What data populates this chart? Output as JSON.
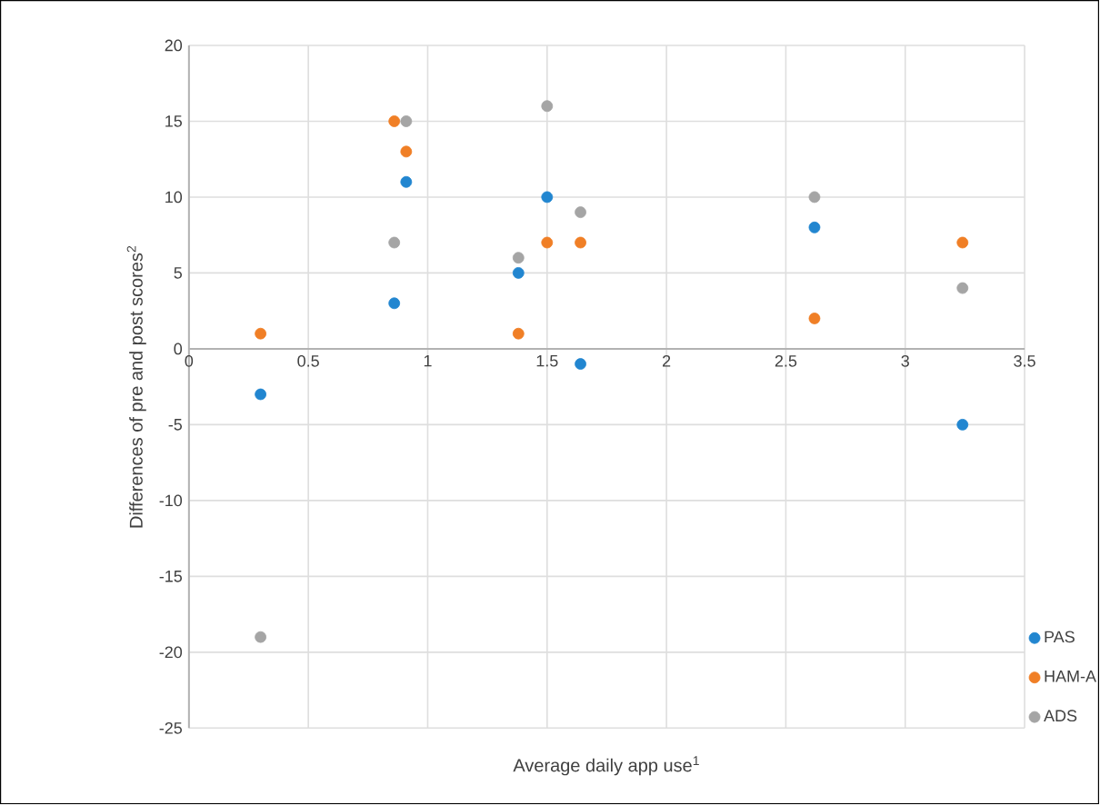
{
  "chart_data": {
    "type": "scatter",
    "xlabel": "Average daily app use$^{1}$",
    "ylabel": "Differences of pre and post scores$^{2}$",
    "x": [
      0.3,
      0.86,
      0.91,
      1.38,
      1.5,
      1.64,
      2.62,
      3.24
    ],
    "series": [
      {
        "name": "PAS",
        "color": "#2286d0",
        "values": [
          -3,
          3,
          11,
          5,
          10,
          -1,
          8,
          -5
        ]
      },
      {
        "name": "HAM-A",
        "color": "#f07f26",
        "values": [
          1,
          15,
          13,
          1,
          7,
          7,
          2,
          7
        ]
      },
      {
        "name": "ADS",
        "color": "#a5a5a5",
        "values": [
          -19,
          7,
          15,
          6,
          16,
          9,
          10,
          4
        ]
      }
    ],
    "xlim": [
      0,
      3.5
    ],
    "ylim": [
      -25,
      20
    ],
    "xticks": [
      0,
      0.5,
      1,
      1.5,
      2,
      2.5,
      3,
      3.5
    ],
    "yticks": [
      -25,
      -20,
      -15,
      -10,
      -5,
      0,
      5,
      10,
      15,
      20
    ],
    "grid": true,
    "legend": "bottom right",
    "marker": "circle"
  }
}
